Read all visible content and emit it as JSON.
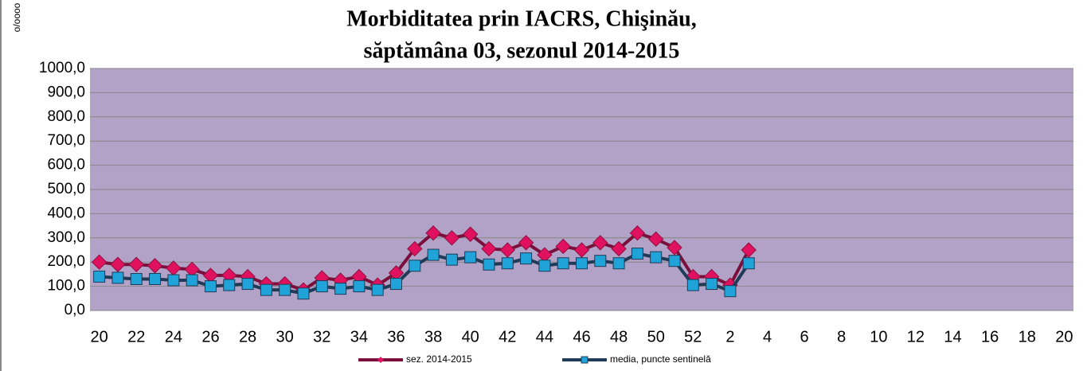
{
  "chart_data": {
    "type": "line",
    "title": [
      "Morbiditatea prin IACRS, Chişinău,",
      "săptămâna 03, sezonul 2014-2015"
    ],
    "y_label": "o/oooo",
    "categories": [
      "20",
      null,
      "22",
      null,
      "24",
      null,
      "26",
      null,
      "28",
      null,
      "30",
      null,
      "32",
      null,
      "34",
      null,
      "36",
      null,
      "38",
      null,
      "40",
      null,
      "42",
      null,
      "44",
      null,
      "46",
      null,
      "48",
      null,
      "50",
      null,
      "52",
      null,
      "2",
      null,
      "4",
      null,
      "6",
      null,
      "8",
      null,
      "10",
      null,
      "12",
      null,
      "14",
      null,
      "16",
      null,
      "18",
      null,
      "20"
    ],
    "series": [
      {
        "name": "sez. 2014-2015",
        "color": "#7b0f3c",
        "marker_color": "#e0115f",
        "values": [
          200,
          190,
          190,
          185,
          175,
          170,
          145,
          145,
          140,
          110,
          110,
          85,
          135,
          125,
          140,
          105,
          155,
          255,
          320,
          300,
          315,
          255,
          250,
          280,
          230,
          265,
          250,
          280,
          255,
          320,
          295,
          260,
          140,
          140,
          105,
          250,
          null,
          null,
          null,
          null,
          null,
          null,
          null,
          null,
          null,
          null,
          null,
          null,
          null,
          null,
          null,
          null,
          null
        ]
      },
      {
        "name": "media, puncte sentinelă",
        "color": "#1f3b57",
        "marker_color": "#1fa3d8",
        "values": [
          140,
          135,
          130,
          130,
          125,
          125,
          100,
          105,
          110,
          85,
          85,
          70,
          100,
          90,
          100,
          85,
          110,
          185,
          230,
          210,
          220,
          190,
          195,
          215,
          185,
          195,
          195,
          205,
          195,
          235,
          220,
          205,
          105,
          110,
          80,
          195,
          null,
          null,
          null,
          null,
          null,
          null,
          null,
          null,
          null,
          null,
          null,
          null,
          null,
          null,
          null,
          null,
          null
        ]
      }
    ],
    "ylim": [
      0,
      1000
    ],
    "yticks": [
      {
        "value": 0,
        "label": "0,0"
      },
      {
        "value": 100,
        "label": "100,0"
      },
      {
        "value": 200,
        "label": "200,0"
      },
      {
        "value": 300,
        "label": "300,0"
      },
      {
        "value": 400,
        "label": "400,0"
      },
      {
        "value": 500,
        "label": "500,0"
      },
      {
        "value": 600,
        "label": "600,0"
      },
      {
        "value": 700,
        "label": "700,0"
      },
      {
        "value": 800,
        "label": "800,0"
      },
      {
        "value": 900,
        "label": "900,0"
      },
      {
        "value": 1000,
        "label": "1000,0"
      }
    ],
    "grid": true,
    "plot_background": "#b3a2c7",
    "legend": "bottom"
  }
}
